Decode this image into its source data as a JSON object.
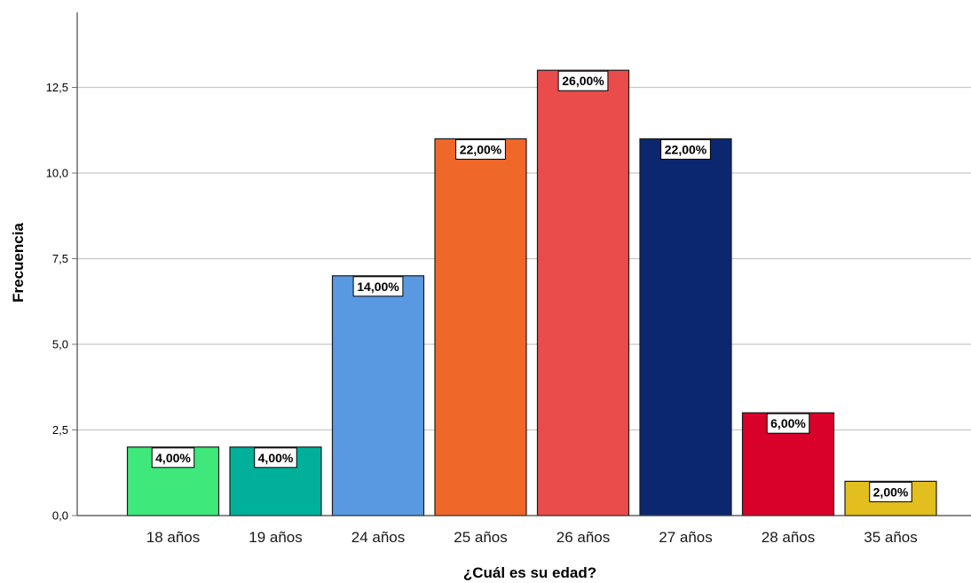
{
  "chart_data": {
    "type": "bar",
    "title": "",
    "xlabel": "¿Cuál es su edad?",
    "ylabel": "Frecuencia",
    "categories": [
      "18 años",
      "19 años",
      "24 años",
      "25 años",
      "26 años",
      "27 años",
      "28 años",
      "35 años"
    ],
    "values": [
      2,
      2,
      7,
      11,
      13,
      11,
      3,
      1
    ],
    "data_labels": [
      "4,00%",
      "4,00%",
      "14,00%",
      "22,00%",
      "26,00%",
      "22,00%",
      "6,00%",
      "2,00%"
    ],
    "colors": [
      "#3ee87a",
      "#00b09a",
      "#5899e2",
      "#f0672a",
      "#ea4c4c",
      "#0b2770",
      "#d9002a",
      "#e2be1e"
    ],
    "ylim": [
      0,
      15
    ],
    "yticks": [
      0,
      2.5,
      5,
      7.5,
      10,
      12.5
    ],
    "ytick_labels": [
      "0,0",
      "2,5",
      "5,0",
      "7,5",
      "10,0",
      "12,5"
    ],
    "grid": true,
    "legend": "none"
  }
}
